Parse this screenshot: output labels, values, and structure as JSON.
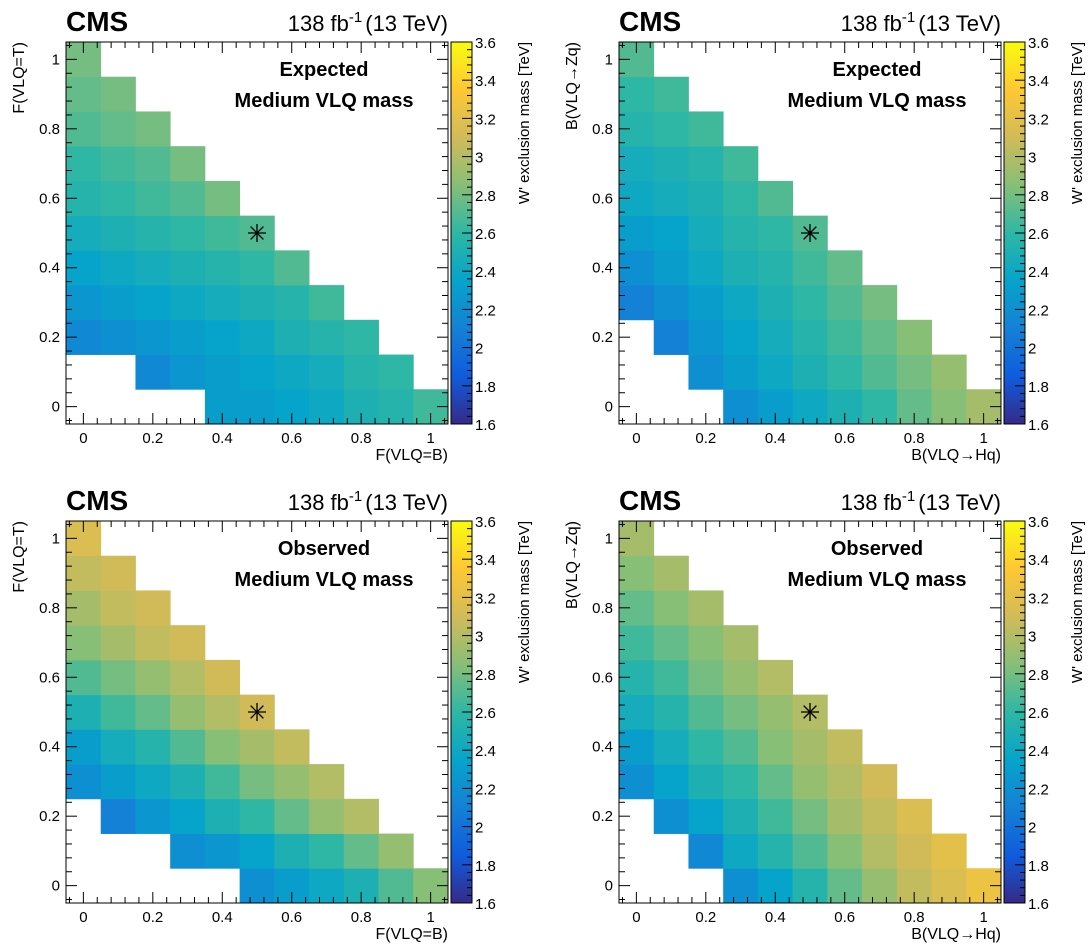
{
  "figure": {
    "experiment": "CMS",
    "lumi_base": "138 fb",
    "lumi_exp": "-1",
    "energy": "(13 TeV)"
  },
  "colorbar": {
    "label": "W' exclusion mass [TeV]",
    "range": [
      1.6,
      3.6
    ],
    "ticks": [
      "1.6",
      "1.8",
      "2",
      "2.2",
      "2.4",
      "2.6",
      "2.8",
      "3",
      "3.2",
      "3.4",
      "3.6"
    ],
    "colors": [
      "#352a87",
      "#0f5cdd",
      "#1481d6",
      "#06a4ca",
      "#2eb7a4",
      "#87bf77",
      "#d1bb59",
      "#fec832",
      "#f9fb0e"
    ]
  },
  "chart_data": [
    {
      "type": "heatmap",
      "status": "Expected",
      "subtitle": "Medium VLQ mass",
      "xlabel": "F(VLQ=B)",
      "ylabel": "F(VLQ=T)",
      "xticks": [
        "0",
        "0.2",
        "0.4",
        "0.6",
        "0.8",
        "1"
      ],
      "yticks": [
        "0",
        "0.2",
        "0.4",
        "0.6",
        "0.8",
        "1"
      ],
      "grid": false,
      "marker": [
        0.5,
        0.5
      ],
      "cells": [
        [
          null,
          null,
          null,
          null,
          2.3,
          2.3,
          2.35,
          2.4,
          2.5,
          2.55,
          2.65
        ],
        [
          null,
          null,
          2.15,
          2.25,
          2.3,
          2.35,
          2.4,
          2.45,
          2.55,
          2.6
        ],
        [
          2.15,
          2.2,
          2.25,
          2.3,
          2.35,
          2.4,
          2.5,
          2.55,
          2.6
        ],
        [
          2.25,
          2.3,
          2.35,
          2.4,
          2.45,
          2.5,
          2.55,
          2.65
        ],
        [
          2.35,
          2.4,
          2.45,
          2.5,
          2.55,
          2.6,
          2.7
        ],
        [
          2.45,
          2.5,
          2.55,
          2.6,
          2.65,
          2.7
        ],
        [
          2.55,
          2.6,
          2.65,
          2.7,
          2.8
        ],
        [
          2.6,
          2.65,
          2.7,
          2.8
        ],
        [
          2.7,
          2.75,
          2.8
        ],
        [
          2.75,
          2.8
        ],
        [
          2.8
        ]
      ]
    },
    {
      "type": "heatmap",
      "status": "Expected",
      "subtitle": "Medium VLQ mass",
      "xlabel": "B(VLQ→Hq)",
      "ylabel": "B(VLQ→Zq)",
      "xticks": [
        "0",
        "0.2",
        "0.4",
        "0.6",
        "0.8",
        "1"
      ],
      "yticks": [
        "0",
        "0.2",
        "0.4",
        "0.6",
        "0.8",
        "1"
      ],
      "grid": false,
      "marker": [
        0.5,
        0.5
      ],
      "cells": [
        [
          null,
          null,
          null,
          2.2,
          2.3,
          2.4,
          2.5,
          2.6,
          2.75,
          2.85,
          2.95
        ],
        [
          null,
          null,
          2.2,
          2.3,
          2.4,
          2.5,
          2.6,
          2.7,
          2.8,
          2.9
        ],
        [
          null,
          2.1,
          2.25,
          2.35,
          2.45,
          2.55,
          2.65,
          2.75,
          2.85
        ],
        [
          2.1,
          2.2,
          2.3,
          2.4,
          2.5,
          2.6,
          2.7,
          2.8
        ],
        [
          2.2,
          2.3,
          2.4,
          2.5,
          2.55,
          2.65,
          2.75
        ],
        [
          2.3,
          2.35,
          2.45,
          2.55,
          2.6,
          2.7
        ],
        [
          2.4,
          2.45,
          2.5,
          2.6,
          2.7
        ],
        [
          2.45,
          2.5,
          2.55,
          2.65
        ],
        [
          2.55,
          2.6,
          2.65
        ],
        [
          2.6,
          2.65
        ],
        [
          2.7
        ]
      ]
    },
    {
      "type": "heatmap",
      "status": "Observed",
      "subtitle": "Medium VLQ mass",
      "xlabel": "F(VLQ=B)",
      "ylabel": "F(VLQ=T)",
      "xticks": [
        "0",
        "0.2",
        "0.4",
        "0.6",
        "0.8",
        "1"
      ],
      "yticks": [
        "0",
        "0.2",
        "0.4",
        "0.6",
        "0.8",
        "1"
      ],
      "grid": false,
      "marker": [
        0.5,
        0.5
      ],
      "cells": [
        [
          null,
          null,
          null,
          null,
          null,
          2.2,
          2.3,
          2.4,
          2.5,
          2.7,
          2.85
        ],
        [
          null,
          null,
          null,
          2.2,
          2.25,
          2.35,
          2.5,
          2.6,
          2.75,
          2.9
        ],
        [
          null,
          2.1,
          2.25,
          2.35,
          2.5,
          2.6,
          2.75,
          2.9,
          3.0
        ],
        [
          2.2,
          2.3,
          2.4,
          2.5,
          2.65,
          2.8,
          2.9,
          3.0
        ],
        [
          2.3,
          2.45,
          2.55,
          2.7,
          2.85,
          2.95,
          3.05
        ],
        [
          2.5,
          2.65,
          2.75,
          2.9,
          3.0,
          3.1
        ],
        [
          2.7,
          2.8,
          2.9,
          3.0,
          3.1
        ],
        [
          2.85,
          2.95,
          3.05,
          3.1
        ],
        [
          2.95,
          3.05,
          3.1
        ],
        [
          3.05,
          3.1
        ],
        [
          3.15
        ]
      ]
    },
    {
      "type": "heatmap",
      "status": "Observed",
      "subtitle": "Medium VLQ mass",
      "xlabel": "B(VLQ→Hq)",
      "ylabel": "B(VLQ→Zq)",
      "xticks": [
        "0",
        "0.2",
        "0.4",
        "0.6",
        "0.8",
        "1"
      ],
      "yticks": [
        "0",
        "0.2",
        "0.4",
        "0.6",
        "0.8",
        "1"
      ],
      "grid": false,
      "marker": [
        0.5,
        0.5
      ],
      "cells": [
        [
          null,
          null,
          null,
          2.2,
          2.35,
          2.55,
          2.75,
          2.9,
          3.05,
          3.15,
          3.25
        ],
        [
          null,
          null,
          2.15,
          2.4,
          2.55,
          2.7,
          2.85,
          3.0,
          3.1,
          3.2
        ],
        [
          null,
          2.2,
          2.35,
          2.5,
          2.65,
          2.8,
          2.95,
          3.05,
          3.15
        ],
        [
          2.2,
          2.35,
          2.5,
          2.6,
          2.75,
          2.9,
          3.0,
          3.1
        ],
        [
          2.3,
          2.45,
          2.6,
          2.7,
          2.85,
          2.95,
          3.05
        ],
        [
          2.45,
          2.55,
          2.7,
          2.8,
          2.9,
          3.0
        ],
        [
          2.55,
          2.65,
          2.8,
          2.9,
          3.0
        ],
        [
          2.65,
          2.75,
          2.85,
          2.95
        ],
        [
          2.75,
          2.85,
          2.95
        ],
        [
          2.85,
          2.95
        ],
        [
          2.95
        ]
      ]
    }
  ]
}
